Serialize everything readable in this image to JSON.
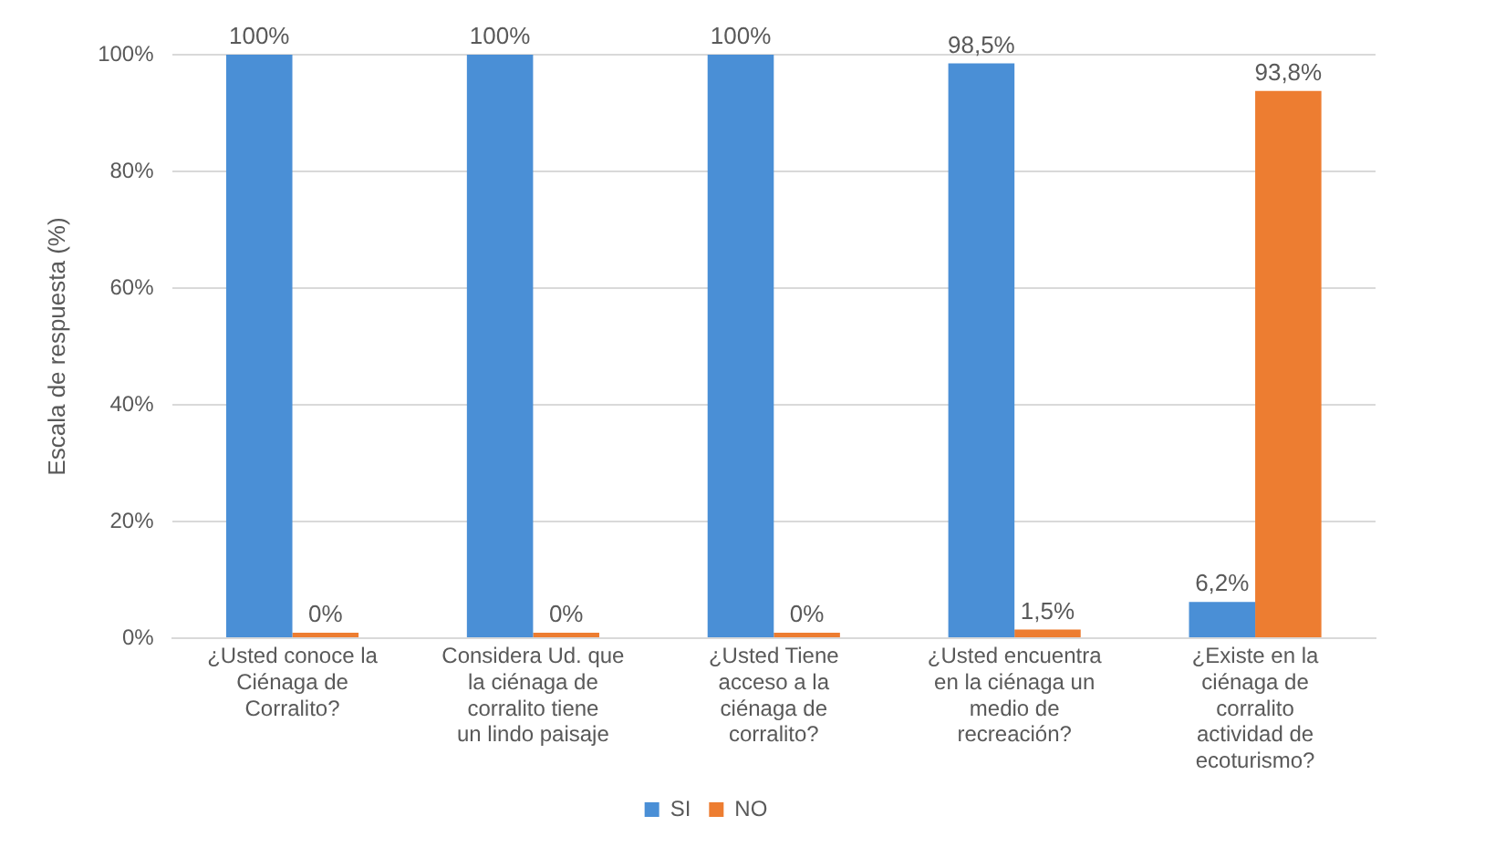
{
  "chart_data": {
    "type": "bar",
    "ylabel": "Escala de respuesta (%)",
    "categories": [
      "¿Usted conoce la Ciénaga de Corralito?",
      "Considera Ud. que la ciénaga de corralito tiene un lindo paisaje",
      "¿Usted Tiene acceso a la ciénaga de corralito?",
      "¿Usted encuentra en la ciénaga un medio de recreación?",
      "¿Existe en la ciénaga de corralito actividad de ecoturismo?"
    ],
    "series": [
      {
        "name": "SI",
        "color": "#4a8fd6",
        "values": [
          100,
          100,
          100,
          98.5,
          6.2
        ],
        "value_labels": [
          "100%",
          "100%",
          "100%",
          "98,5%",
          "6,2%"
        ]
      },
      {
        "name": "NO",
        "color": "#ed7d31",
        "values": [
          0,
          0,
          0,
          1.5,
          93.8
        ],
        "value_labels": [
          "0%",
          "0%",
          "0%",
          "1,5%",
          "93,8%"
        ]
      }
    ],
    "ylim": [
      0,
      100
    ],
    "yticks": [
      {
        "value": 0,
        "label": "0%"
      },
      {
        "value": 20,
        "label": "20%"
      },
      {
        "value": 40,
        "label": "40%"
      },
      {
        "value": 60,
        "label": "60%"
      },
      {
        "value": 80,
        "label": "80%"
      },
      {
        "value": 100,
        "label": "100%"
      }
    ],
    "grid": "y",
    "legend": "bottom"
  }
}
